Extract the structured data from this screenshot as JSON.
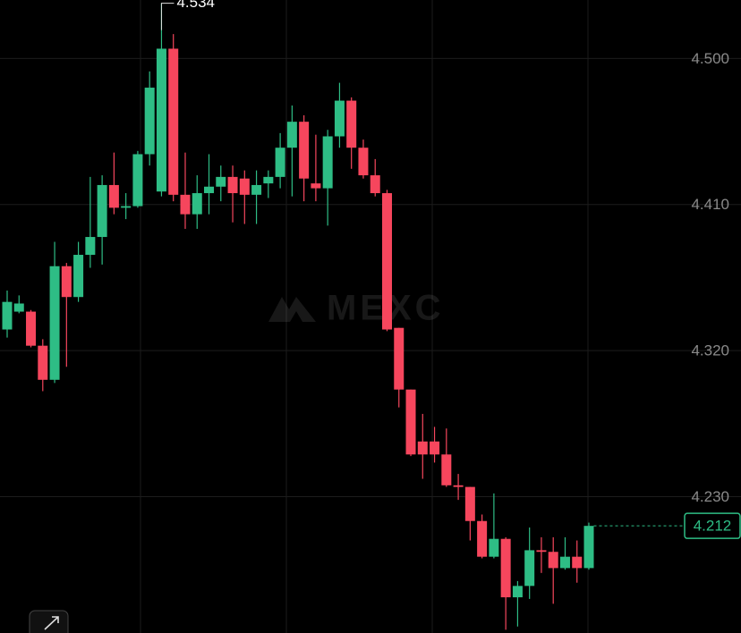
{
  "chart_data": {
    "type": "candlestick",
    "watermark": "MEXC",
    "up_color": "#2ebd85",
    "down_color": "#f6465d",
    "ylim": [
      4.146,
      4.536
    ],
    "yticks": [
      {
        "value": 4.5,
        "label": "4.500"
      },
      {
        "value": 4.41,
        "label": "4.410"
      },
      {
        "value": 4.32,
        "label": "4.320"
      },
      {
        "value": 4.23,
        "label": "4.230"
      }
    ],
    "grid": true,
    "open": [
      4.333,
      4.344,
      4.344,
      4.323,
      4.302,
      4.372,
      4.353,
      4.379,
      4.39,
      4.422,
      4.408,
      4.409,
      4.441,
      4.418,
      4.506,
      4.416,
      4.404,
      4.417,
      4.421,
      4.427,
      4.426,
      4.416,
      4.423,
      4.427,
      4.445,
      4.461,
      4.423,
      4.42,
      4.452,
      4.474,
      4.445,
      4.428,
      4.417,
      4.334,
      4.296,
      4.264,
      4.264,
      4.256,
      4.237,
      4.236,
      4.215,
      4.193,
      4.204,
      4.168,
      4.175,
      4.197,
      4.196,
      4.186,
      4.193,
      4.186
    ],
    "close": [
      4.35,
      4.349,
      4.323,
      4.302,
      4.372,
      4.353,
      4.379,
      4.39,
      4.422,
      4.408,
      4.409,
      4.441,
      4.482,
      4.506,
      4.416,
      4.404,
      4.417,
      4.421,
      4.427,
      4.417,
      4.416,
      4.422,
      4.427,
      4.445,
      4.461,
      4.426,
      4.42,
      4.452,
      4.474,
      4.445,
      4.428,
      4.417,
      4.333,
      4.296,
      4.256,
      4.256,
      4.256,
      4.237,
      4.236,
      4.215,
      4.193,
      4.204,
      4.168,
      4.175,
      4.197,
      4.196,
      4.186,
      4.193,
      4.186,
      4.212
    ],
    "high": [
      4.357,
      4.354,
      4.345,
      4.327,
      4.387,
      4.374,
      4.387,
      4.427,
      4.428,
      4.442,
      4.417,
      4.443,
      4.492,
      4.534,
      4.515,
      4.442,
      4.428,
      4.441,
      4.434,
      4.434,
      4.431,
      4.431,
      4.431,
      4.454,
      4.471,
      4.465,
      4.453,
      4.456,
      4.485,
      4.476,
      4.45,
      4.438,
      4.419,
      4.334,
      4.296,
      4.281,
      4.273,
      4.272,
      4.244,
      4.236,
      4.219,
      4.232,
      4.205,
      4.178,
      4.211,
      4.205,
      4.205,
      4.205,
      4.203,
      4.214
    ],
    "low": [
      4.328,
      4.343,
      4.322,
      4.295,
      4.3,
      4.31,
      4.35,
      4.371,
      4.373,
      4.404,
      4.401,
      4.408,
      4.434,
      4.415,
      4.412,
      4.395,
      4.395,
      4.404,
      4.412,
      4.399,
      4.398,
      4.398,
      4.414,
      4.42,
      4.415,
      4.412,
      4.412,
      4.397,
      4.445,
      4.432,
      4.426,
      4.415,
      4.332,
      4.285,
      4.255,
      4.241,
      4.251,
      4.236,
      4.228,
      4.203,
      4.192,
      4.192,
      4.148,
      4.15,
      4.167,
      4.183,
      4.164,
      4.185,
      4.177,
      4.185
    ]
  }
}
